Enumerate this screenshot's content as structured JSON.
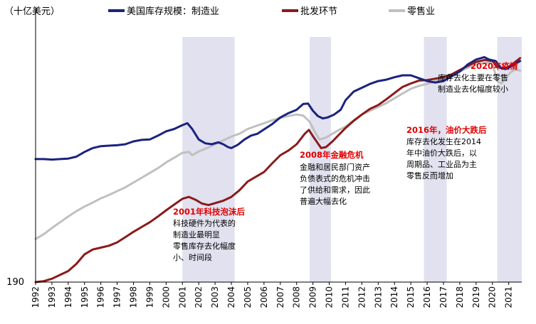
{
  "chart_data": {
    "type": "line",
    "unit_label": "（十亿美元）",
    "y_tick_labels": [
      {
        "value": 190,
        "label": "190"
      }
    ],
    "ylim": [
      190,
      720
    ],
    "x_range": [
      1992,
      2021.8
    ],
    "x_tick_labels": [
      "1992",
      "1993",
      "1994",
      "1995",
      "1996",
      "1997",
      "1998",
      "1999",
      "2000",
      "2001",
      "2002",
      "2003",
      "2004",
      "2005",
      "2006",
      "2007",
      "2008",
      "2009",
      "2010",
      "2011",
      "2012",
      "2013",
      "2014",
      "2015",
      "2016",
      "2017",
      "2018",
      "2019",
      "2020",
      "2021"
    ],
    "legend": {
      "position": "top",
      "entries": [
        {
          "name": "美国库存规模：制造业",
          "color": "#1a237e"
        },
        {
          "name": "批发环节",
          "color": "#8b1a1a"
        },
        {
          "name": "零售业",
          "color": "#c0c0c0"
        }
      ]
    },
    "shaded_periods": [
      {
        "start": 2001.0,
        "end": 2004.2,
        "color": "#e1e1ef"
      },
      {
        "start": 2008.8,
        "end": 2010.1,
        "color": "#e1e1ef"
      },
      {
        "start": 2015.8,
        "end": 2017.2,
        "color": "#e1e1ef"
      },
      {
        "start": 2020.3,
        "end": 2021.8,
        "color": "#e1e1ef"
      }
    ],
    "series": [
      {
        "name": "美国库存规模：制造业",
        "color": "#1a237e",
        "points": [
          [
            1992.0,
            447
          ],
          [
            1992.5,
            447
          ],
          [
            1993.0,
            446
          ],
          [
            1993.5,
            447
          ],
          [
            1994.0,
            448
          ],
          [
            1994.5,
            452
          ],
          [
            1995.0,
            462
          ],
          [
            1995.5,
            470
          ],
          [
            1996.0,
            474
          ],
          [
            1996.5,
            475
          ],
          [
            1997.0,
            476
          ],
          [
            1997.5,
            478
          ],
          [
            1998.0,
            484
          ],
          [
            1998.5,
            487
          ],
          [
            1999.0,
            488
          ],
          [
            1999.5,
            496
          ],
          [
            2000.0,
            505
          ],
          [
            2000.5,
            510
          ],
          [
            2001.0,
            518
          ],
          [
            2001.3,
            522
          ],
          [
            2001.6,
            510
          ],
          [
            2002.0,
            488
          ],
          [
            2002.4,
            480
          ],
          [
            2002.8,
            478
          ],
          [
            2003.2,
            482
          ],
          [
            2003.5,
            478
          ],
          [
            2003.8,
            472
          ],
          [
            2004.0,
            470
          ],
          [
            2004.4,
            477
          ],
          [
            2004.8,
            488
          ],
          [
            2005.2,
            496
          ],
          [
            2005.6,
            500
          ],
          [
            2006.0,
            509
          ],
          [
            2006.5,
            520
          ],
          [
            2007.0,
            534
          ],
          [
            2007.5,
            543
          ],
          [
            2008.0,
            550
          ],
          [
            2008.4,
            562
          ],
          [
            2008.7,
            563
          ],
          [
            2009.0,
            548
          ],
          [
            2009.3,
            537
          ],
          [
            2009.6,
            532
          ],
          [
            2009.9,
            534
          ],
          [
            2010.3,
            540
          ],
          [
            2010.7,
            550
          ],
          [
            2011.0,
            570
          ],
          [
            2011.5,
            588
          ],
          [
            2012.0,
            596
          ],
          [
            2012.5,
            604
          ],
          [
            2013.0,
            610
          ],
          [
            2013.5,
            613
          ],
          [
            2014.0,
            618
          ],
          [
            2014.5,
            622
          ],
          [
            2015.0,
            622
          ],
          [
            2015.5,
            616
          ],
          [
            2016.0,
            610
          ],
          [
            2016.5,
            607
          ],
          [
            2017.0,
            610
          ],
          [
            2017.5,
            620
          ],
          [
            2018.0,
            630
          ],
          [
            2018.5,
            645
          ],
          [
            2019.0,
            655
          ],
          [
            2019.5,
            660
          ],
          [
            2019.8,
            655
          ],
          [
            2020.2,
            652
          ],
          [
            2020.5,
            638
          ],
          [
            2020.8,
            635
          ],
          [
            2021.0,
            638
          ],
          [
            2021.4,
            646
          ],
          [
            2021.7,
            652
          ]
        ]
      },
      {
        "name": "批发环节",
        "color": "#8b1a1a",
        "points": [
          [
            1992.0,
            190
          ],
          [
            1992.5,
            192
          ],
          [
            1993.0,
            197
          ],
          [
            1993.5,
            205
          ],
          [
            1994.0,
            213
          ],
          [
            1994.5,
            228
          ],
          [
            1995.0,
            248
          ],
          [
            1995.5,
            258
          ],
          [
            1996.0,
            262
          ],
          [
            1996.5,
            266
          ],
          [
            1997.0,
            273
          ],
          [
            1997.5,
            284
          ],
          [
            1998.0,
            295
          ],
          [
            1998.5,
            305
          ],
          [
            1999.0,
            315
          ],
          [
            1999.5,
            327
          ],
          [
            2000.0,
            340
          ],
          [
            2000.5,
            352
          ],
          [
            2001.0,
            364
          ],
          [
            2001.4,
            368
          ],
          [
            2001.8,
            362
          ],
          [
            2002.2,
            354
          ],
          [
            2002.6,
            351
          ],
          [
            2003.0,
            355
          ],
          [
            2003.5,
            360
          ],
          [
            2004.0,
            368
          ],
          [
            2004.5,
            382
          ],
          [
            2005.0,
            400
          ],
          [
            2005.5,
            410
          ],
          [
            2006.0,
            420
          ],
          [
            2006.5,
            438
          ],
          [
            2007.0,
            455
          ],
          [
            2007.5,
            465
          ],
          [
            2008.0,
            478
          ],
          [
            2008.5,
            500
          ],
          [
            2008.75,
            508
          ],
          [
            2009.0,
            495
          ],
          [
            2009.3,
            480
          ],
          [
            2009.5,
            470
          ],
          [
            2009.8,
            472
          ],
          [
            2010.2,
            484
          ],
          [
            2010.6,
            498
          ],
          [
            2011.0,
            512
          ],
          [
            2011.5,
            527
          ],
          [
            2012.0,
            540
          ],
          [
            2012.5,
            552
          ],
          [
            2013.0,
            560
          ],
          [
            2013.5,
            572
          ],
          [
            2014.0,
            585
          ],
          [
            2014.5,
            598
          ],
          [
            2015.0,
            605
          ],
          [
            2015.5,
            611
          ],
          [
            2016.0,
            612
          ],
          [
            2016.5,
            615
          ],
          [
            2017.0,
            618
          ],
          [
            2017.5,
            624
          ],
          [
            2018.0,
            633
          ],
          [
            2018.5,
            642
          ],
          [
            2019.0,
            650
          ],
          [
            2019.5,
            654
          ],
          [
            2020.0,
            652
          ],
          [
            2020.3,
            640
          ],
          [
            2020.6,
            636
          ],
          [
            2021.0,
            640
          ],
          [
            2021.4,
            650
          ],
          [
            2021.7,
            658
          ]
        ]
      },
      {
        "name": "零售业",
        "color": "#c0c0c0",
        "points": [
          [
            1992.0,
            280
          ],
          [
            1992.5,
            290
          ],
          [
            1993.0,
            303
          ],
          [
            1993.5,
            315
          ],
          [
            1994.0,
            327
          ],
          [
            1994.5,
            338
          ],
          [
            1995.0,
            348
          ],
          [
            1995.5,
            356
          ],
          [
            1996.0,
            365
          ],
          [
            1996.5,
            372
          ],
          [
            1997.0,
            380
          ],
          [
            1997.5,
            388
          ],
          [
            1998.0,
            398
          ],
          [
            1998.5,
            408
          ],
          [
            1999.0,
            418
          ],
          [
            1999.5,
            428
          ],
          [
            2000.0,
            440
          ],
          [
            2000.5,
            450
          ],
          [
            2001.0,
            460
          ],
          [
            2001.4,
            462
          ],
          [
            2001.6,
            455
          ],
          [
            2002.0,
            463
          ],
          [
            2002.5,
            470
          ],
          [
            2003.0,
            478
          ],
          [
            2003.5,
            486
          ],
          [
            2004.0,
            494
          ],
          [
            2004.5,
            500
          ],
          [
            2005.0,
            510
          ],
          [
            2005.5,
            516
          ],
          [
            2006.0,
            522
          ],
          [
            2006.5,
            528
          ],
          [
            2007.0,
            533
          ],
          [
            2007.5,
            537
          ],
          [
            2008.0,
            540
          ],
          [
            2008.4,
            538
          ],
          [
            2008.8,
            525
          ],
          [
            2009.1,
            505
          ],
          [
            2009.4,
            488
          ],
          [
            2009.8,
            492
          ],
          [
            2010.2,
            500
          ],
          [
            2010.6,
            508
          ],
          [
            2011.0,
            515
          ],
          [
            2011.5,
            528
          ],
          [
            2012.0,
            540
          ],
          [
            2012.5,
            548
          ],
          [
            2013.0,
            556
          ],
          [
            2013.5,
            564
          ],
          [
            2014.0,
            574
          ],
          [
            2014.5,
            584
          ],
          [
            2015.0,
            594
          ],
          [
            2015.5,
            600
          ],
          [
            2016.0,
            604
          ],
          [
            2016.5,
            610
          ],
          [
            2017.0,
            616
          ],
          [
            2017.5,
            622
          ],
          [
            2018.0,
            630
          ],
          [
            2018.5,
            638
          ],
          [
            2019.0,
            645
          ],
          [
            2019.5,
            648
          ],
          [
            2019.9,
            648
          ],
          [
            2020.1,
            635
          ],
          [
            2020.3,
            610
          ],
          [
            2020.55,
            605
          ],
          [
            2020.8,
            615
          ],
          [
            2021.1,
            628
          ],
          [
            2021.4,
            634
          ],
          [
            2021.7,
            632
          ]
        ]
      }
    ],
    "annotations": [
      {
        "title": "2001年科技泡沫后",
        "lines": [
          "科技硬件为代表的",
          "制造业最明显",
          "零售库存去化幅度",
          "小、时间段"
        ]
      },
      {
        "title": "2008年金融危机",
        "lines": [
          "金融和居民部门资产",
          "负债表式的危机冲击",
          "了供给和需求，因此",
          "普遍大幅去化"
        ]
      },
      {
        "title": "2016年，油价大跌后",
        "lines": [
          "库存去化发生在2014",
          "年中油价大跌后，以",
          "周期品、工业品为主",
          "零售反而增加"
        ]
      },
      {
        "title": "2020年疫情",
        "lines": [
          "库存去化主要在零售",
          "制造业去化幅度较小"
        ]
      }
    ]
  }
}
